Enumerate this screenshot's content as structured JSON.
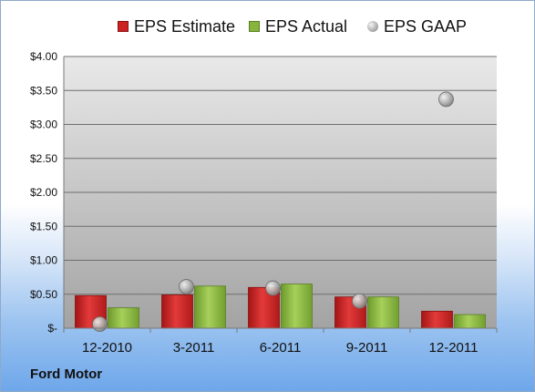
{
  "footer_label": "Ford Motor",
  "colors": {
    "estimate": "#cc2222",
    "actual": "#86b43c",
    "gaap": "#a8a8a8",
    "plot_bg_top": "#e9e9e9",
    "plot_bg_bottom": "#a3a3a3"
  },
  "chart_data": {
    "type": "bar",
    "categories": [
      "12-2010",
      "3-2011",
      "6-2011",
      "9-2011",
      "12-2011"
    ],
    "series": [
      {
        "name": "EPS Estimate",
        "kind": "bar",
        "values": [
          0.48,
          0.49,
          0.6,
          0.46,
          0.25
        ]
      },
      {
        "name": "EPS Actual",
        "kind": "bar",
        "values": [
          0.3,
          0.62,
          0.65,
          0.46,
          0.2
        ]
      },
      {
        "name": "EPS GAAP",
        "kind": "scatter",
        "values": [
          0.06,
          0.61,
          0.59,
          0.4,
          3.37
        ]
      }
    ],
    "ylim": [
      0,
      4
    ],
    "yticks": [
      0,
      0.5,
      1,
      1.5,
      2,
      2.5,
      3,
      3.5,
      4
    ],
    "ytick_labels": [
      "$-",
      "$0.50",
      "$1.00",
      "$1.50",
      "$2.00",
      "$2.50",
      "$3.00",
      "$3.50",
      "$4.00"
    ],
    "grid": true,
    "legend_position": "top"
  }
}
